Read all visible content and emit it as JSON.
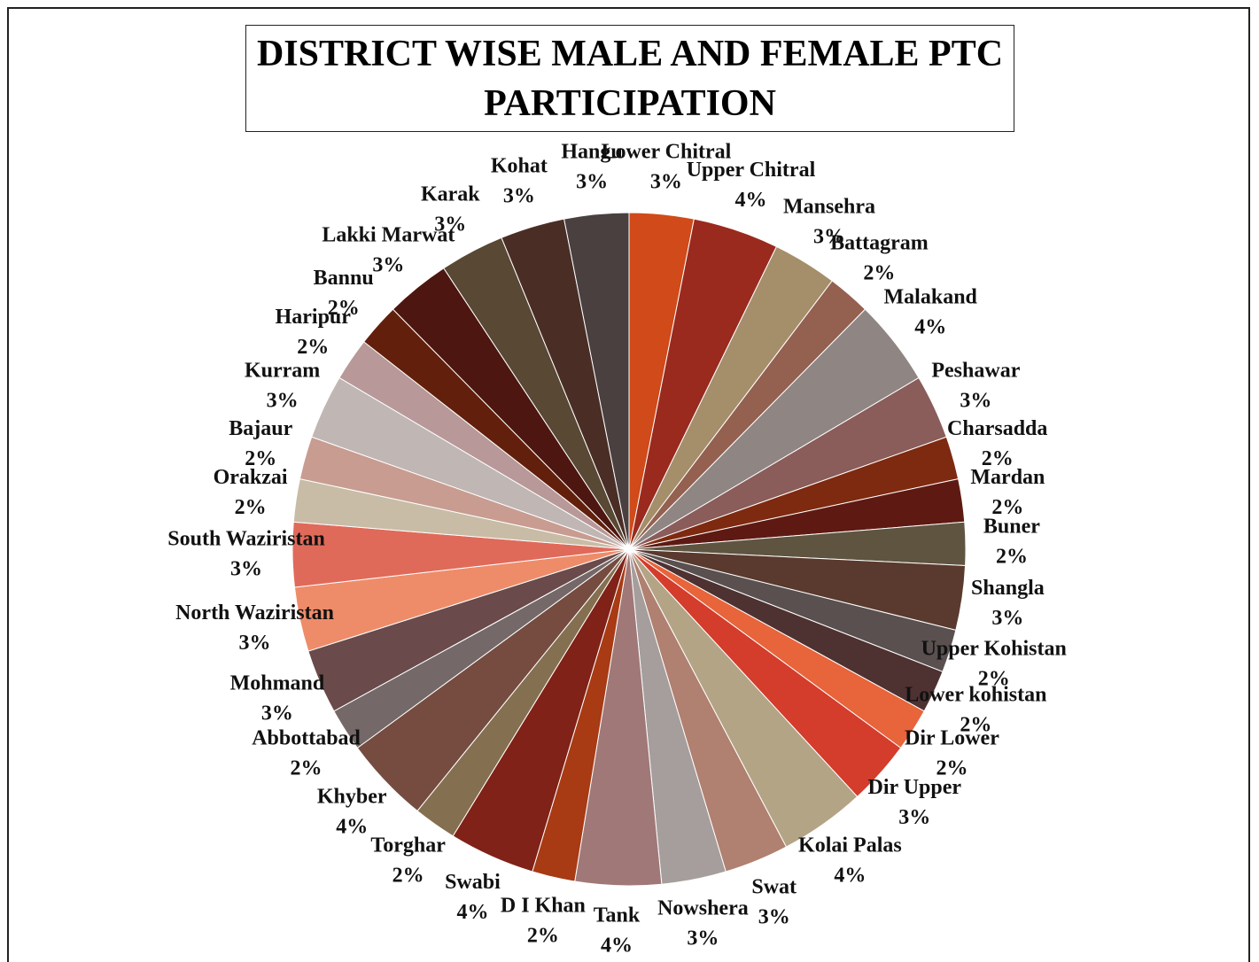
{
  "chart_data": {
    "type": "pie",
    "title": "DISTRICT WISE MALE AND FEMALE PTC PARTICIPATION",
    "categories": [
      "Lower Chitral",
      "Upper Chitral",
      "Mansehra",
      "Battagram",
      "Malakand",
      "Peshawar",
      "Charsadda",
      "Mardan",
      "Buner",
      "Shangla",
      "Upper Kohistan",
      "Lower kohistan",
      "Dir Lower",
      "Dir Upper",
      "Kolai Palas",
      "Swat",
      "Nowshera",
      "Tank",
      "D I Khan",
      "Swabi",
      "Torghar",
      "Khyber",
      "Abbottabad",
      "Mohmand",
      "North Waziristan",
      "South Waziristan",
      "Orakzai",
      "Bajaur",
      "Kurram",
      "Haripur",
      "Bannu",
      "Lakki Marwat",
      "Karak",
      "Kohat",
      "Hangu"
    ],
    "values": [
      3,
      4,
      3,
      2,
      4,
      3,
      2,
      2,
      2,
      3,
      2,
      2,
      2,
      3,
      4,
      3,
      3,
      4,
      2,
      4,
      2,
      4,
      2,
      3,
      3,
      3,
      2,
      2,
      3,
      2,
      2,
      3,
      3,
      3,
      3
    ],
    "value_labels": [
      "3%",
      "4%",
      "3%",
      "2%",
      "4%",
      "3%",
      "2%",
      "2%",
      "2%",
      "3%",
      "2%",
      "2%",
      "2%",
      "3%",
      "4%",
      "3%",
      "3%",
      "4%",
      "2%",
      "4%",
      "2%",
      "4%",
      "2%",
      "3%",
      "3%",
      "3%",
      "2%",
      "2%",
      "3%",
      "2%",
      "2%",
      "3%",
      "3%",
      "3%",
      "3%"
    ],
    "colors": [
      "#d04a1a",
      "#9a2a1e",
      "#a58e6a",
      "#94604f",
      "#8f8583",
      "#8a5c5a",
      "#7e2a10",
      "#5e1a12",
      "#5e5440",
      "#5a3a2e",
      "#5a5050",
      "#4e3232",
      "#e8643a",
      "#d43c2c",
      "#b4a486",
      "#b08070",
      "#a69e9c",
      "#a07878",
      "#a83a14",
      "#802218",
      "#847050",
      "#764c40",
      "#746868",
      "#6a4a4a",
      "#ee8c6a",
      "#e06a5a",
      "#c8bca6",
      "#c89c90",
      "#c0b6b4",
      "#b89898",
      "#62200c",
      "#4e1610",
      "#584834",
      "#4a2e26",
      "#4a4040"
    ]
  }
}
